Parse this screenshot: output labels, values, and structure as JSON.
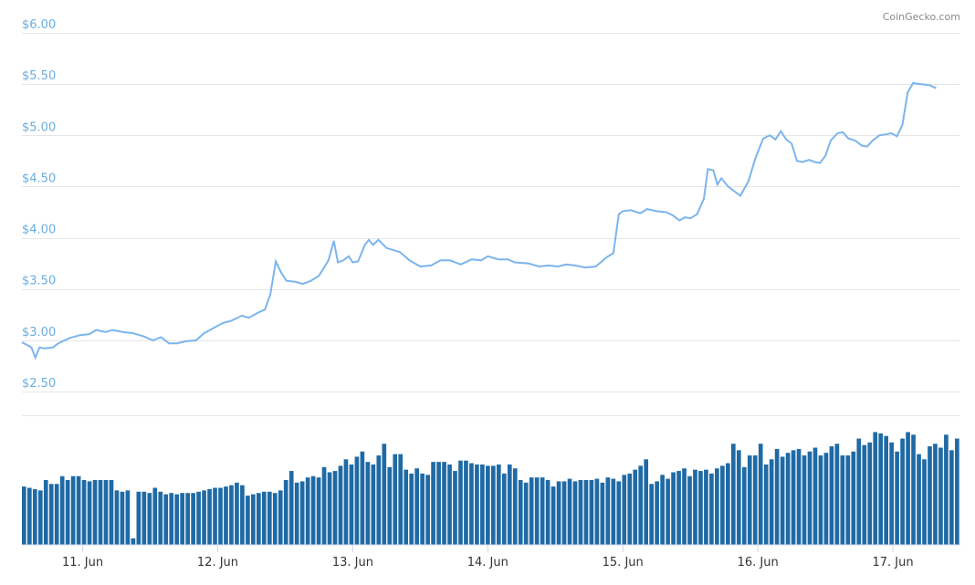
{
  "watermark": "CoinGecko.com",
  "colors": {
    "price_line": "#7cb5ec",
    "volume_bar": "#1f6aa5",
    "grid": "#e6e6e6",
    "y_tick_label": "#6aaee0",
    "x_tick_label": "#333333"
  },
  "chart_data": {
    "type": "line",
    "title": "",
    "xlabel": "",
    "ylabel": "",
    "ylim": [
      2.5,
      6.0
    ],
    "y_ticks": [
      "$6.00",
      "$5.50",
      "$5.00",
      "$4.50",
      "$4.00",
      "$3.50",
      "$3.00",
      "$2.50"
    ],
    "y_tick_values": [
      6.0,
      5.5,
      5.0,
      4.5,
      4.0,
      3.5,
      3.0,
      2.5
    ],
    "x_ticks": [
      "11. Jun",
      "12. Jun",
      "13. Jun",
      "14. Jun",
      "15. Jun",
      "16. Jun",
      "17. Jun"
    ],
    "x_tick_days": [
      11,
      12,
      13,
      14,
      15,
      16,
      17
    ],
    "x_range_days": [
      10.55,
      17.5
    ],
    "grid": true,
    "legend": "none",
    "series": [
      {
        "values": [
          [
            10.55,
            2.98
          ],
          [
            10.58,
            2.96
          ],
          [
            10.62,
            2.93
          ],
          [
            10.65,
            2.83
          ],
          [
            10.68,
            2.93
          ],
          [
            10.72,
            2.92
          ],
          [
            10.78,
            2.93
          ],
          [
            10.82,
            2.97
          ],
          [
            10.9,
            3.02
          ],
          [
            10.98,
            3.05
          ],
          [
            11.05,
            3.06
          ],
          [
            11.1,
            3.1
          ],
          [
            11.17,
            3.08
          ],
          [
            11.22,
            3.1
          ],
          [
            11.3,
            3.08
          ],
          [
            11.37,
            3.07
          ],
          [
            11.45,
            3.04
          ],
          [
            11.52,
            3.0
          ],
          [
            11.58,
            3.03
          ],
          [
            11.64,
            2.97
          ],
          [
            11.7,
            2.97
          ],
          [
            11.76,
            2.99
          ],
          [
            11.84,
            3.0
          ],
          [
            11.9,
            3.07
          ],
          [
            11.97,
            3.12
          ],
          [
            12.04,
            3.17
          ],
          [
            12.1,
            3.19
          ],
          [
            12.18,
            3.24
          ],
          [
            12.23,
            3.22
          ],
          [
            12.3,
            3.27
          ],
          [
            12.35,
            3.3
          ],
          [
            12.39,
            3.45
          ],
          [
            12.43,
            3.77
          ],
          [
            12.47,
            3.66
          ],
          [
            12.51,
            3.58
          ],
          [
            12.58,
            3.57
          ],
          [
            12.63,
            3.55
          ],
          [
            12.69,
            3.58
          ],
          [
            12.75,
            3.63
          ],
          [
            12.82,
            3.78
          ],
          [
            12.86,
            3.97
          ],
          [
            12.89,
            3.76
          ],
          [
            12.93,
            3.78
          ],
          [
            12.97,
            3.82
          ],
          [
            13.0,
            3.76
          ],
          [
            13.04,
            3.77
          ],
          [
            13.09,
            3.93
          ],
          [
            13.12,
            3.98
          ],
          [
            13.15,
            3.93
          ],
          [
            13.19,
            3.98
          ],
          [
            13.25,
            3.9
          ],
          [
            13.35,
            3.86
          ],
          [
            13.42,
            3.78
          ],
          [
            13.5,
            3.72
          ],
          [
            13.58,
            3.73
          ],
          [
            13.65,
            3.78
          ],
          [
            13.72,
            3.78
          ],
          [
            13.8,
            3.74
          ],
          [
            13.88,
            3.79
          ],
          [
            13.95,
            3.78
          ],
          [
            14.0,
            3.82
          ],
          [
            14.08,
            3.79
          ],
          [
            14.15,
            3.79
          ],
          [
            14.2,
            3.76
          ],
          [
            14.3,
            3.75
          ],
          [
            14.38,
            3.72
          ],
          [
            14.45,
            3.73
          ],
          [
            14.52,
            3.72
          ],
          [
            14.58,
            3.74
          ],
          [
            14.65,
            3.73
          ],
          [
            14.72,
            3.71
          ],
          [
            14.8,
            3.72
          ],
          [
            14.88,
            3.81
          ],
          [
            14.93,
            3.85
          ],
          [
            14.97,
            4.23
          ],
          [
            15.0,
            4.26
          ],
          [
            15.06,
            4.27
          ],
          [
            15.13,
            4.24
          ],
          [
            15.18,
            4.28
          ],
          [
            15.25,
            4.26
          ],
          [
            15.32,
            4.25
          ],
          [
            15.37,
            4.22
          ],
          [
            15.42,
            4.17
          ],
          [
            15.46,
            4.2
          ],
          [
            15.5,
            4.19
          ],
          [
            15.55,
            4.23
          ],
          [
            15.6,
            4.38
          ],
          [
            15.63,
            4.67
          ],
          [
            15.67,
            4.66
          ],
          [
            15.7,
            4.52
          ],
          [
            15.73,
            4.58
          ],
          [
            15.78,
            4.5
          ],
          [
            15.83,
            4.45
          ],
          [
            15.87,
            4.41
          ],
          [
            15.93,
            4.55
          ],
          [
            15.98,
            4.77
          ],
          [
            16.04,
            4.97
          ],
          [
            16.09,
            5.0
          ],
          [
            16.13,
            4.96
          ],
          [
            16.17,
            5.04
          ],
          [
            16.21,
            4.96
          ],
          [
            16.25,
            4.92
          ],
          [
            16.29,
            4.75
          ],
          [
            16.33,
            4.74
          ],
          [
            16.38,
            4.76
          ],
          [
            16.42,
            4.74
          ],
          [
            16.46,
            4.73
          ],
          [
            16.5,
            4.8
          ],
          [
            16.54,
            4.95
          ],
          [
            16.59,
            5.02
          ],
          [
            16.63,
            5.03
          ],
          [
            16.67,
            4.97
          ],
          [
            16.72,
            4.95
          ],
          [
            16.77,
            4.9
          ],
          [
            16.81,
            4.89
          ],
          [
            16.85,
            4.95
          ],
          [
            16.9,
            5.0
          ],
          [
            16.95,
            5.01
          ],
          [
            16.99,
            5.02
          ],
          [
            17.03,
            4.99
          ],
          [
            17.07,
            5.1
          ],
          [
            17.11,
            5.42
          ],
          [
            17.15,
            5.51
          ],
          [
            17.2,
            5.5
          ],
          [
            17.27,
            5.49
          ],
          [
            17.32,
            5.46
          ]
        ]
      },
      {
        "name": "volume",
        "values": [
          0.45,
          0.44,
          0.43,
          0.42,
          0.5,
          0.47,
          0.47,
          0.53,
          0.5,
          0.53,
          0.53,
          0.5,
          0.49,
          0.5,
          0.5,
          0.5,
          0.5,
          0.42,
          0.41,
          0.42,
          0.05,
          0.41,
          0.41,
          0.4,
          0.44,
          0.41,
          0.39,
          0.4,
          0.39,
          0.4,
          0.4,
          0.4,
          0.41,
          0.42,
          0.43,
          0.44,
          0.44,
          0.45,
          0.46,
          0.48,
          0.46,
          0.38,
          0.39,
          0.4,
          0.41,
          0.41,
          0.4,
          0.42,
          0.5,
          0.57,
          0.48,
          0.49,
          0.52,
          0.53,
          0.52,
          0.6,
          0.56,
          0.57,
          0.61,
          0.66,
          0.62,
          0.68,
          0.72,
          0.64,
          0.62,
          0.69,
          0.78,
          0.6,
          0.7,
          0.7,
          0.58,
          0.55,
          0.59,
          0.55,
          0.54,
          0.64,
          0.64,
          0.64,
          0.62,
          0.57,
          0.65,
          0.65,
          0.63,
          0.62,
          0.62,
          0.61,
          0.61,
          0.62,
          0.55,
          0.62,
          0.59,
          0.5,
          0.48,
          0.52,
          0.52,
          0.52,
          0.5,
          0.45,
          0.49,
          0.49,
          0.51,
          0.49,
          0.5,
          0.5,
          0.5,
          0.51,
          0.48,
          0.52,
          0.51,
          0.49,
          0.54,
          0.55,
          0.58,
          0.61,
          0.66,
          0.47,
          0.49,
          0.54,
          0.51,
          0.56,
          0.57,
          0.59,
          0.53,
          0.58,
          0.57,
          0.58,
          0.55,
          0.59,
          0.61,
          0.63,
          0.78,
          0.73,
          0.6,
          0.69,
          0.69,
          0.78,
          0.62,
          0.66,
          0.74,
          0.68,
          0.71,
          0.73,
          0.74,
          0.69,
          0.72,
          0.75,
          0.69,
          0.71,
          0.76,
          0.78,
          0.69,
          0.69,
          0.72,
          0.82,
          0.77,
          0.79,
          0.87,
          0.86,
          0.84,
          0.79,
          0.72,
          0.82,
          0.87,
          0.85,
          0.7,
          0.66,
          0.76,
          0.78,
          0.75,
          0.85,
          0.73,
          0.82
        ]
      }
    ]
  }
}
